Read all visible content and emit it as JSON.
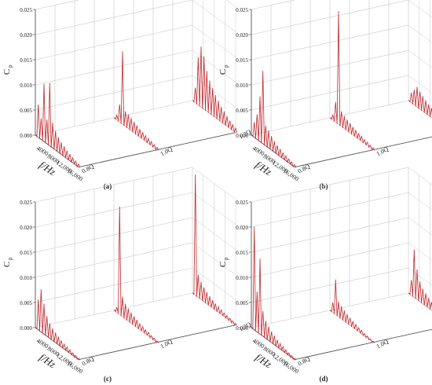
{
  "figure": {
    "panel_labels": [
      "(a)",
      "(b)",
      "(c)",
      "(d)"
    ]
  },
  "colors": {
    "spectrum": "#c0282d",
    "grid": "#c8c8c8",
    "axis": "#555555",
    "text": "#222222"
  },
  "chart_data": [
    {
      "type": "line",
      "panel": "(a)",
      "ylabel": "C",
      "ylabel_sub": "p",
      "xlabel": "f/Hz",
      "ylim": [
        0,
        0.025
      ],
      "y_ticks": [
        "0.000",
        "0.005",
        "0.010",
        "0.015",
        "0.020",
        "0.025"
      ],
      "x_ticks": [
        "4000",
        "8000",
        "12,000",
        "16,000"
      ],
      "z_ticks": [
        "0.8Q",
        "1.0Q",
        "1.2Q"
      ],
      "series": [
        {
          "values": [
            0,
            0.0065,
            0.0042,
            0.0115,
            0.0048,
            0.0125,
            0.005,
            0.0038,
            0.003,
            0.0024,
            0.002,
            0.0016,
            0.0013,
            0.001,
            0.0008,
            0.0006
          ]
        },
        {
          "values": [
            0,
            0.001,
            0.0035,
            0.0145,
            0.003,
            0.0028,
            0.0025,
            0.0022,
            0.0019,
            0.0016,
            0.0014,
            0.0012,
            0.001,
            0.0008,
            0.0006,
            0.0005
          ]
        },
        {
          "values": [
            0,
            0.003,
            0.0095,
            0.012,
            0.0105,
            0.008,
            0.0065,
            0.0055,
            0.0045,
            0.0038,
            0.003,
            0.0025,
            0.002,
            0.0015,
            0.0012,
            0.0009
          ]
        }
      ]
    },
    {
      "type": "line",
      "panel": "(b)",
      "ylabel": "C",
      "ylabel_sub": "p",
      "xlabel": "f/Hz",
      "ylim": [
        0,
        0.025
      ],
      "y_ticks": [
        "0.000",
        "0.005",
        "0.010",
        "0.015",
        "0.020",
        "0.025"
      ],
      "x_ticks": [
        "4000",
        "8000",
        "12,000",
        "16,000"
      ],
      "z_ticks": [
        "0.8Q",
        "1.0Q",
        "1.2Q"
      ],
      "series": [
        {
          "values": [
            0,
            0.003,
            0.005,
            0.009,
            0.0145,
            0.004,
            0.0035,
            0.0028,
            0.0022,
            0.0018,
            0.0015,
            0.0012,
            0.001,
            0.0008,
            0.0006,
            0.0005
          ]
        },
        {
          "values": [
            0,
            0.001,
            0.004,
            0.0225,
            0.003,
            0.0025,
            0.0022,
            0.0019,
            0.0016,
            0.0014,
            0.0012,
            0.001,
            0.0008,
            0.0007,
            0.0005,
            0.0004
          ]
        },
        {
          "values": [
            0,
            0.002,
            0.003,
            0.004,
            0.0035,
            0.003,
            0.0026,
            0.0022,
            0.0019,
            0.0016,
            0.0013,
            0.0011,
            0.0009,
            0.0007,
            0.0005,
            0.0004
          ]
        }
      ]
    },
    {
      "type": "line",
      "panel": "(c)",
      "ylabel": "C",
      "ylabel_sub": "p",
      "xlabel": "f/Hz",
      "ylim": [
        0,
        0.025
      ],
      "y_ticks": [
        "0.000",
        "0.005",
        "0.010",
        "0.015",
        "0.020",
        "0.025"
      ],
      "x_ticks": [
        "4000",
        "8000",
        "12,000",
        "16,000"
      ],
      "z_ticks": [
        "0.8Q",
        "1.0Q",
        "1.2Q"
      ],
      "series": [
        {
          "values": [
            0,
            0.006,
            0.0085,
            0.006,
            0.004,
            0.003,
            0.0024,
            0.002,
            0.0016,
            0.0013,
            0.001,
            0.0008,
            0.0007,
            0.0005,
            0.0004,
            0.0003
          ]
        },
        {
          "values": [
            0,
            0.001,
            0.0215,
            0.004,
            0.003,
            0.0025,
            0.0021,
            0.0018,
            0.0015,
            0.0012,
            0.001,
            0.0008,
            0.0007,
            0.0005,
            0.0004,
            0.0003
          ]
        },
        {
          "values": [
            0,
            0.024,
            0.0045,
            0.0035,
            0.0028,
            0.0023,
            0.0019,
            0.0016,
            0.0013,
            0.0011,
            0.0009,
            0.0007,
            0.0006,
            0.0005,
            0.0004,
            0.0003
          ]
        }
      ]
    },
    {
      "type": "line",
      "panel": "(d)",
      "ylabel": "C",
      "ylabel_sub": "p",
      "xlabel": "f/Hz",
      "ylim": [
        0,
        0.025
      ],
      "y_ticks": [
        "0.000",
        "0.005",
        "0.010",
        "0.015",
        "0.020",
        "0.025"
      ],
      "x_ticks": [
        "4000",
        "8000",
        "12,000",
        "16,000"
      ],
      "z_ticks": [
        "0.8Q",
        "1.0Q",
        "1.2Q"
      ],
      "series": [
        {
          "values": [
            0,
            0.0205,
            0.008,
            0.015,
            0.005,
            0.0035,
            0.0028,
            0.0022,
            0.0018,
            0.0014,
            0.0011,
            0.0009,
            0.0007,
            0.0005,
            0.0004,
            0.0003
          ]
        },
        {
          "values": [
            0,
            0.002,
            0.007,
            0.003,
            0.0025,
            0.0021,
            0.0018,
            0.0015,
            0.0012,
            0.001,
            0.0008,
            0.0007,
            0.0005,
            0.0004,
            0.0003,
            0.0002
          ]
        },
        {
          "values": [
            0,
            0.003,
            0.0095,
            0.006,
            0.004,
            0.003,
            0.0025,
            0.002,
            0.0016,
            0.0013,
            0.001,
            0.0008,
            0.0007,
            0.0005,
            0.0004,
            0.0003
          ]
        }
      ]
    }
  ]
}
